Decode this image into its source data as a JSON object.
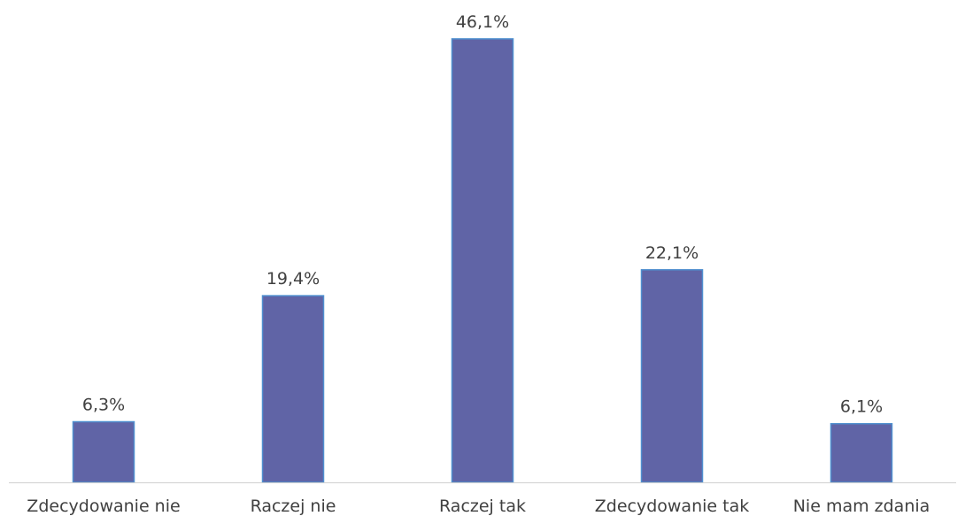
{
  "chart_data": {
    "type": "bar",
    "categories": [
      "Zdecydowanie nie",
      "Raczej nie",
      "Raczej tak",
      "Zdecydowanie tak",
      "Nie mam zdania"
    ],
    "values": [
      6.3,
      19.4,
      46.1,
      22.1,
      6.1
    ],
    "value_labels": [
      "6,3%",
      "19,4%",
      "46,1%",
      "22,1%",
      "6,1%"
    ],
    "unit": "%",
    "ylim": [
      0,
      50
    ],
    "grid": false,
    "legend": "none",
    "bar_color": "#6064a6",
    "bar_outline_color": "#4f8fcf"
  }
}
